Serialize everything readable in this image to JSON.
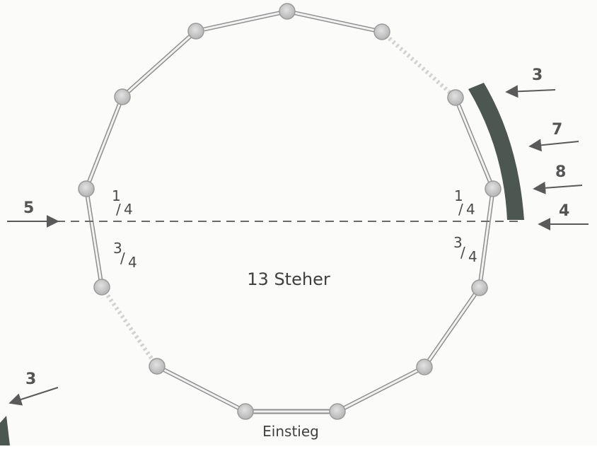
{
  "diagram": {
    "center_label": "13 Steher",
    "entry_label": "Einstieg",
    "fractions": {
      "left_top": {
        "num": "1",
        "den": "4"
      },
      "left_bottom": {
        "num": "3",
        "den": "4"
      },
      "right_top": {
        "num": "1",
        "den": "4"
      },
      "right_bottom": {
        "num": "3",
        "den": "4"
      }
    },
    "arrow_labels": [
      "3",
      "7",
      "8",
      "4",
      "5",
      "3"
    ],
    "colors": {
      "post_fill": "#c8c8c8",
      "rail": "#9a9a9a",
      "marker": "#4c5752",
      "arrow": "#5a5a5a",
      "dashed_line": "#6a6a6a"
    }
  }
}
